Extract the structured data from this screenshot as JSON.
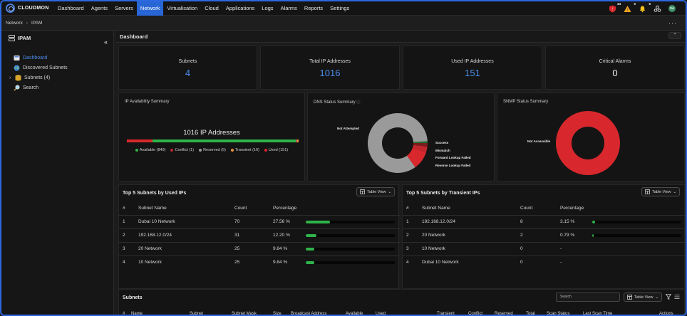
{
  "app": {
    "name": "CLOUDMON"
  },
  "nav": {
    "items": [
      "Dashboard",
      "Agents",
      "Servers",
      "Network",
      "Virtualisation",
      "Cloud",
      "Applications",
      "Logs",
      "Alarms",
      "Reports",
      "Settings"
    ],
    "active": "Network",
    "badges": {
      "critical": "44",
      "warning": "0",
      "notice": "5"
    },
    "avatar": "SA"
  },
  "breadcrumb": {
    "root": "Network",
    "current": "IPAM"
  },
  "sidebar": {
    "title": "IPAM",
    "items": [
      {
        "label": "Dashboard",
        "icon": "dashboard-icon"
      },
      {
        "label": "Discovered Subnets",
        "icon": "globe-icon"
      },
      {
        "label": "Subnets (4)",
        "icon": "database-icon"
      },
      {
        "label": "Search",
        "icon": "search-icon"
      }
    ]
  },
  "dashboard": {
    "title": "Dashboard",
    "stats": [
      {
        "label": "Subnets",
        "value": "4"
      },
      {
        "label": "Total IP Addresses",
        "value": "1016"
      },
      {
        "label": "Used IP Addresses",
        "value": "151"
      },
      {
        "label": "Critical Alarms",
        "value": "0"
      }
    ]
  },
  "ip_availability": {
    "title": "IP Availability Summary",
    "headline": "1016 IP Addresses",
    "legend": [
      {
        "label": "Available (849)",
        "count": 849,
        "color": "#2fb34a"
      },
      {
        "label": "Conflict (1)",
        "count": 1,
        "color": "#c2272d"
      },
      {
        "label": "Reserved (5)",
        "count": 5,
        "color": "#9a9a9a"
      },
      {
        "label": "Transient (10)",
        "count": 10,
        "color": "#e9913a"
      },
      {
        "label": "Used (151)",
        "count": 151,
        "color": "#d8282d"
      }
    ]
  },
  "dns_status": {
    "title": "DNS Status Summary",
    "labels": [
      "Not Attempted",
      "Success",
      "Mismatch",
      "Forward Lookup Failed",
      "Reverse Lookup Failed"
    ],
    "colors": [
      "#9a9a9a",
      "#1f6e2e",
      "#7a1f1f",
      "#c2272d",
      "#d8282d"
    ],
    "fractions": [
      0.84,
      0.01,
      0.02,
      0.03,
      0.1
    ]
  },
  "snmp_status": {
    "title": "SNMP Status Summary",
    "labels": [
      "Not Accessible"
    ],
    "colors": [
      "#d8282d"
    ],
    "fractions": [
      1.0
    ]
  },
  "top_used": {
    "title": "Top 5 Subnets by Used IPs",
    "view_label": "Table View",
    "headers": [
      "#",
      "Subnet Name",
      "Count",
      "Percentage"
    ],
    "rows": [
      {
        "n": "1",
        "name": "Dubai 10 Network",
        "count": "70",
        "pct": "27.56 %",
        "fill": 0.2756
      },
      {
        "n": "2",
        "name": "192.168.12.0/24",
        "count": "31",
        "pct": "12.20 %",
        "fill": 0.122
      },
      {
        "n": "3",
        "name": "20 Network",
        "count": "25",
        "pct": "9.84 %",
        "fill": 0.0984
      },
      {
        "n": "4",
        "name": "10 Network",
        "count": "25",
        "pct": "9.84 %",
        "fill": 0.0984
      }
    ]
  },
  "top_transient": {
    "title": "Top 5 Subnets by Transient IPs",
    "view_label": "Table View",
    "headers": [
      "#",
      "Subnet Name",
      "Count",
      "Percentage"
    ],
    "rows": [
      {
        "n": "1",
        "name": "192.168.12.0/24",
        "count": "8",
        "pct": "3.15 %",
        "fill": 0.0315
      },
      {
        "n": "2",
        "name": "20 Network",
        "count": "2",
        "pct": "0.79 %",
        "fill": 0.0079
      },
      {
        "n": "3",
        "name": "10 Network",
        "count": "0",
        "pct": "-",
        "fill": 0
      },
      {
        "n": "4",
        "name": "Dubai 10 Network",
        "count": "0",
        "pct": "-",
        "fill": 0
      }
    ]
  },
  "subnets": {
    "title": "Subnets",
    "search_placeholder": "Search",
    "view_label": "Table View",
    "columns": [
      "#",
      "Name",
      "Subnet",
      "Subnet Mask",
      "Size",
      "Broadcast Address",
      "Available",
      "Used",
      "Transient",
      "Conflict",
      "Reserved",
      "Total",
      "Scan Status",
      "Last Scan Time",
      "Actions"
    ]
  }
}
